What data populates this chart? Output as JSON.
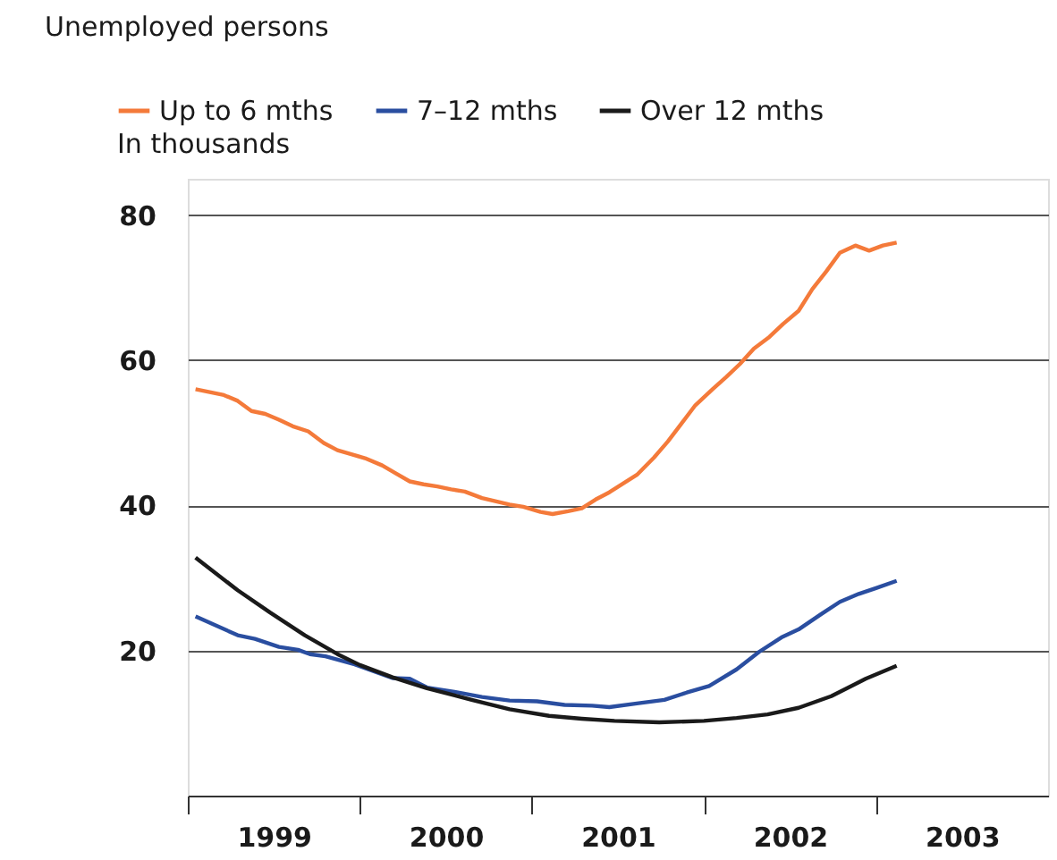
{
  "chart_data": {
    "type": "line",
    "title": "Unemployed persons",
    "ylabel": "In thousands",
    "legend": "top left",
    "grid": "y",
    "line_style": "solid",
    "marker": "none",
    "xlim": [
      1999,
      2004
    ],
    "xticks": [
      {
        "value": 1999,
        "label": null
      },
      {
        "value": 1999.5,
        "label": "1999"
      },
      {
        "value": 2000,
        "label": null
      },
      {
        "value": 2000.5,
        "label": "2000"
      },
      {
        "value": 2001,
        "label": null
      },
      {
        "value": 2001.5,
        "label": "2001"
      },
      {
        "value": 2002,
        "label": null
      },
      {
        "value": 2002.5,
        "label": "2002"
      },
      {
        "value": 2003,
        "label": null
      },
      {
        "value": 2003.5,
        "label": "2003"
      }
    ],
    "ylim": [
      0,
      85
    ],
    "yticks": [
      20,
      40,
      60,
      80
    ],
    "series": [
      {
        "name": "Up to 6 mths",
        "color": "#f47a3a",
        "x": [
          1999.045,
          1999.21,
          1999.29,
          1999.37,
          1999.45,
          1999.53,
          1999.61,
          1999.7,
          1999.79,
          1999.87,
          2000.03,
          2000.13,
          2000.21,
          2000.29,
          2000.37,
          2000.45,
          2000.53,
          2000.61,
          2000.71,
          2000.87,
          2000.95,
          2001.05,
          2001.12,
          2001.21,
          2001.29,
          2001.37,
          2001.45,
          2001.53,
          2001.61,
          2001.71,
          2001.79,
          2001.87,
          2001.95,
          2002.05,
          2002.13,
          2002.21,
          2002.29,
          2002.38,
          2002.46,
          2002.55,
          2002.63,
          2002.71,
          2002.79,
          2002.88,
          2002.96,
          2003.04,
          2003.12
        ],
        "values": [
          56.0,
          55.2,
          54.4,
          53.0,
          52.6,
          51.8,
          50.9,
          50.2,
          48.6,
          47.6,
          46.5,
          45.5,
          44.4,
          43.3,
          42.9,
          42.6,
          42.2,
          41.9,
          41.0,
          40.1,
          39.8,
          39.1,
          38.8,
          39.2,
          39.6,
          40.8,
          41.8,
          43.0,
          44.2,
          46.6,
          48.8,
          51.3,
          53.8,
          56.0,
          57.7,
          59.5,
          61.6,
          63.2,
          65.0,
          66.8,
          69.8,
          72.2,
          74.8,
          75.8,
          75.1,
          75.8,
          76.2
        ]
      },
      {
        "name": "7–12 mths",
        "color": "#2a4ea0",
        "x": [
          1999.045,
          1999.29,
          1999.39,
          1999.53,
          1999.64,
          1999.71,
          1999.8,
          1999.97,
          2000.19,
          2000.29,
          2000.39,
          2000.55,
          2000.71,
          2000.87,
          2001.03,
          2001.19,
          2001.35,
          2001.45,
          2001.61,
          2001.77,
          2001.9,
          2002.03,
          2002.19,
          2002.32,
          2002.45,
          2002.55,
          2002.68,
          2002.79,
          2002.9,
          2003.0,
          2003.12
        ],
        "values": [
          24.7,
          22.1,
          21.6,
          20.5,
          20.1,
          19.5,
          19.2,
          18.1,
          16.2,
          16.1,
          14.9,
          14.3,
          13.6,
          13.1,
          13.0,
          12.5,
          12.4,
          12.2,
          12.7,
          13.2,
          14.2,
          15.1,
          17.4,
          19.8,
          21.8,
          22.9,
          25.0,
          26.7,
          27.8,
          28.6,
          29.6
        ]
      },
      {
        "name": "Over 12 mths",
        "color": "#1a1a1a",
        "x": [
          1999.045,
          1999.29,
          1999.48,
          1999.68,
          1999.87,
          2000.0,
          2000.19,
          2000.39,
          2000.65,
          2000.87,
          2001.1,
          2001.29,
          2001.48,
          2001.74,
          2002.0,
          2002.19,
          2002.37,
          2002.55,
          2002.74,
          2002.94,
          2003.12
        ],
        "values": [
          32.8,
          28.3,
          25.2,
          22.1,
          19.5,
          18.0,
          16.3,
          14.8,
          13.2,
          11.9,
          11.0,
          10.6,
          10.3,
          10.1,
          10.3,
          10.7,
          11.2,
          12.1,
          13.7,
          16.1,
          17.9
        ]
      }
    ]
  }
}
